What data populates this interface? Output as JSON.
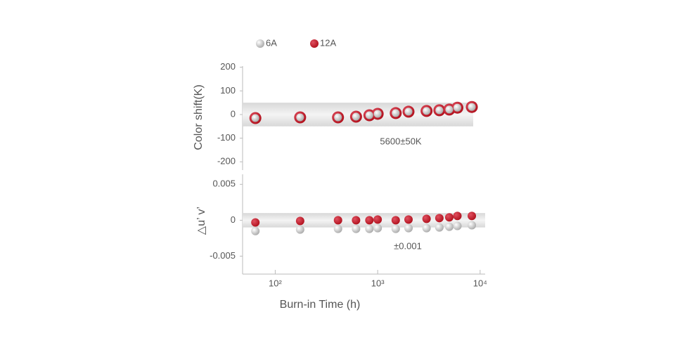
{
  "chart_data": {
    "type": "scatter",
    "log_x": true,
    "xlabel": "Burn-in Time (h)",
    "x": [
      64,
      175,
      410,
      615,
      830,
      1000,
      1500,
      2000,
      3000,
      4000,
      5000,
      6000,
      8300
    ],
    "xlim": [
      48,
      11200
    ],
    "xticks": [
      {
        "value": 100,
        "label": "10²"
      },
      {
        "value": 1000,
        "label": "10³"
      },
      {
        "value": 10000,
        "label": "10⁴"
      }
    ],
    "series": [
      {
        "name": "6A",
        "color": "#a8a8a8"
      },
      {
        "name": "12A",
        "color": "#b0101c"
      }
    ],
    "panels": [
      {
        "ylabel": "Color shift(K)",
        "ylim": [
          -235,
          205
        ],
        "yticks": [
          200,
          100,
          0,
          -100,
          -200
        ],
        "band": [
          -50,
          50
        ],
        "annotation": "5600±50K",
        "series": [
          {
            "values": [
              -15,
              -12,
              -12,
              -9,
              -3,
              3,
              6,
              12,
              15,
              18,
              21,
              29,
              32
            ]
          },
          {
            "values": [
              -15,
              -12,
              -12,
              -9,
              -3,
              3,
              6,
              12,
              15,
              18,
              21,
              29,
              32
            ]
          }
        ]
      },
      {
        "ylabel": "△u’ v’",
        "ylim": [
          -0.0075,
          0.0064
        ],
        "yticks": [
          0.005,
          0,
          -0.005
        ],
        "band": [
          -0.001,
          0.001
        ],
        "annotation": "±0.001",
        "series": [
          {
            "values": [
              -0.0015,
              -0.0013,
              -0.0012,
              -0.0012,
              -0.0012,
              -0.0011,
              -0.0012,
              -0.0011,
              -0.0011,
              -0.001,
              -0.0009,
              -0.0008,
              -0.0007
            ]
          },
          {
            "values": [
              -0.0003,
              -0.0001,
              0,
              0,
              0,
              0.0001,
              0,
              0.0001,
              0.0002,
              0.0003,
              0.0004,
              0.0006,
              0.0006
            ]
          }
        ]
      }
    ]
  }
}
